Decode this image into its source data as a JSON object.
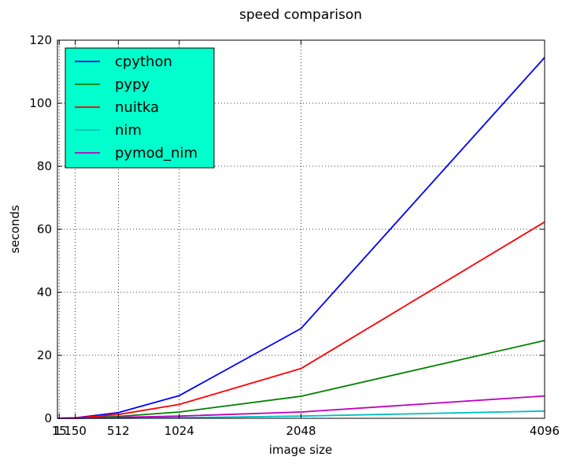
{
  "chart_data": {
    "type": "line",
    "title": "speed comparison",
    "xlabel": "image size",
    "ylabel": "seconds",
    "x": [
      1,
      15,
      150,
      512,
      1024,
      2048,
      4096
    ],
    "xlim": [
      0,
      4096
    ],
    "ylim": [
      0,
      120
    ],
    "xticks": [
      1,
      15,
      150,
      512,
      1024,
      2048,
      4096
    ],
    "xtick_labels": [
      "1",
      "15",
      "150",
      "512",
      "1024",
      "2048",
      "4096"
    ],
    "yticks": [
      0,
      20,
      40,
      60,
      80,
      100,
      120
    ],
    "ytick_labels": [
      "0",
      "20",
      "40",
      "60",
      "80",
      "100",
      "120"
    ],
    "grid": true,
    "legend_position": "top-left",
    "legend_background": "#00ffcc",
    "series": [
      {
        "name": "cpython",
        "color": "#0000ff",
        "values": [
          0.0,
          0.01,
          0.15,
          1.8,
          7.2,
          28.5,
          114.5
        ]
      },
      {
        "name": "pypy",
        "color": "#008000",
        "values": [
          0.0,
          0.01,
          0.08,
          0.6,
          2.0,
          7.0,
          24.7
        ]
      },
      {
        "name": "nuitka",
        "color": "#ff0000",
        "values": [
          0.0,
          0.01,
          0.12,
          1.2,
          4.4,
          15.8,
          62.3
        ]
      },
      {
        "name": "nim",
        "color": "#00bfbf",
        "values": [
          0.0,
          0.0,
          0.01,
          0.05,
          0.2,
          0.7,
          2.3
        ]
      },
      {
        "name": "pymod_nim",
        "color": "#bf00bf",
        "values": [
          0.0,
          0.0,
          0.02,
          0.3,
          0.7,
          2.0,
          7.1
        ]
      }
    ]
  }
}
